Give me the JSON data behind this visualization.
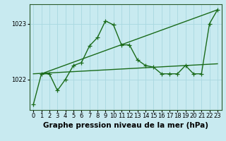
{
  "background_color": "#c8eaf0",
  "plot_bg_color": "#c8eaf0",
  "grid_color": "#a8d8e0",
  "line_color": "#1a6b1a",
  "title": "Graphe pression niveau de la mer (hPa)",
  "xlim": [
    -0.5,
    23.5
  ],
  "ylim": [
    1021.45,
    1023.35
  ],
  "yticks": [
    1022,
    1023
  ],
  "xticks": [
    0,
    1,
    2,
    3,
    4,
    5,
    6,
    7,
    8,
    9,
    10,
    11,
    12,
    13,
    14,
    15,
    16,
    17,
    18,
    19,
    20,
    21,
    22,
    23
  ],
  "series1_x": [
    0,
    1,
    2,
    3,
    4,
    5,
    6,
    7,
    8,
    9,
    10,
    11,
    12,
    13,
    14,
    15,
    16,
    17,
    18,
    19,
    20,
    21,
    22,
    23
  ],
  "series1_y": [
    1021.55,
    1022.1,
    1022.1,
    1021.8,
    1022.0,
    1022.25,
    1022.3,
    1022.6,
    1022.75,
    1023.05,
    1022.98,
    1022.62,
    1022.62,
    1022.35,
    1022.25,
    1022.22,
    1022.1,
    1022.1,
    1022.1,
    1022.25,
    1022.1,
    1022.1,
    1023.0,
    1023.25
  ],
  "line1_x": [
    0,
    23
  ],
  "line1_y": [
    1022.1,
    1022.28
  ],
  "line2_x": [
    1,
    23
  ],
  "line2_y": [
    1022.1,
    1023.25
  ],
  "marker_style": "+",
  "marker_size": 4,
  "line_width": 1.0,
  "title_fontsize": 7.5,
  "tick_fontsize": 6.0
}
